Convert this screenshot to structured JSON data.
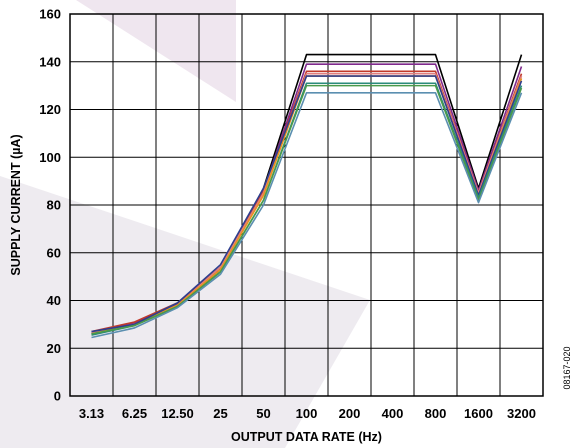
{
  "chart_data": {
    "type": "line",
    "title": "",
    "xlabel": "OUTPUT DATA RATE (Hz)",
    "ylabel": "SUPPLY CURRENT (µA)",
    "categories": [
      "3.13",
      "6.25",
      "12.50",
      "25",
      "50",
      "100",
      "200",
      "400",
      "800",
      "1600",
      "3200"
    ],
    "ylim": [
      0,
      160
    ],
    "yticks": [
      0,
      20,
      40,
      60,
      80,
      100,
      120,
      140,
      160
    ],
    "yticklabels": [
      "0",
      "20",
      "40",
      "60",
      "80",
      "100",
      "120",
      "140",
      "160"
    ],
    "grid": true,
    "legend": "none",
    "figure_id": "08167-020",
    "series": [
      {
        "color": "#000000",
        "values": [
          26,
          30,
          38,
          53,
          87,
          143,
          143,
          143,
          143,
          87,
          143
        ]
      },
      {
        "color": "#7f2a8c",
        "values": [
          26.5,
          30.5,
          38.5,
          54,
          86,
          139,
          139,
          139,
          139,
          86,
          138
        ]
      },
      {
        "color": "#c0392b",
        "values": [
          27,
          31,
          39,
          54,
          86,
          136,
          136,
          136,
          136,
          85,
          135
        ]
      },
      {
        "color": "#e08080",
        "values": [
          26.5,
          30,
          38,
          54,
          85,
          135,
          135,
          135,
          135,
          85,
          134
        ]
      },
      {
        "color": "#e8931f",
        "values": [
          26,
          30,
          38,
          53,
          84,
          134,
          134,
          134,
          134,
          84,
          133
        ]
      },
      {
        "color": "#2e3f8f",
        "values": [
          27,
          30,
          39,
          55,
          87,
          134,
          134,
          134,
          134,
          84,
          132
        ]
      },
      {
        "color": "#2a8a7a",
        "values": [
          25.5,
          29.5,
          37.5,
          52,
          82,
          131,
          131,
          131,
          131,
          83,
          130
        ]
      },
      {
        "color": "#4a9a4a",
        "values": [
          26,
          29.5,
          37.5,
          52,
          82,
          130,
          130,
          130,
          130,
          82,
          129
        ]
      },
      {
        "color": "#5b8fb0",
        "values": [
          24.5,
          28.5,
          37,
          51,
          80,
          127,
          127,
          127,
          127,
          81,
          127
        ]
      }
    ]
  }
}
